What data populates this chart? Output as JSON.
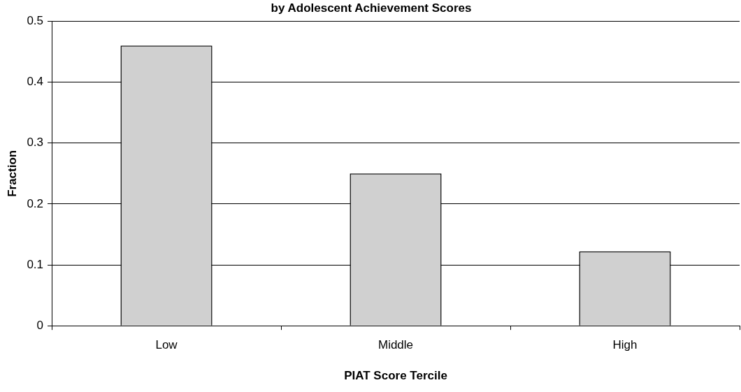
{
  "chart_data": {
    "type": "bar",
    "title": "by Adolescent Achievement Scores",
    "xlabel": "PIAT Score Tercile",
    "ylabel": "Fraction",
    "categories": [
      "Low",
      "Middle",
      "High"
    ],
    "values": [
      0.46,
      0.25,
      0.122
    ],
    "color": "#d0d0d0",
    "ylim": [
      0,
      0.5
    ],
    "yticks": [
      0,
      0.1,
      0.2,
      0.3,
      0.4,
      0.5
    ],
    "grid": "y",
    "legend": false
  }
}
